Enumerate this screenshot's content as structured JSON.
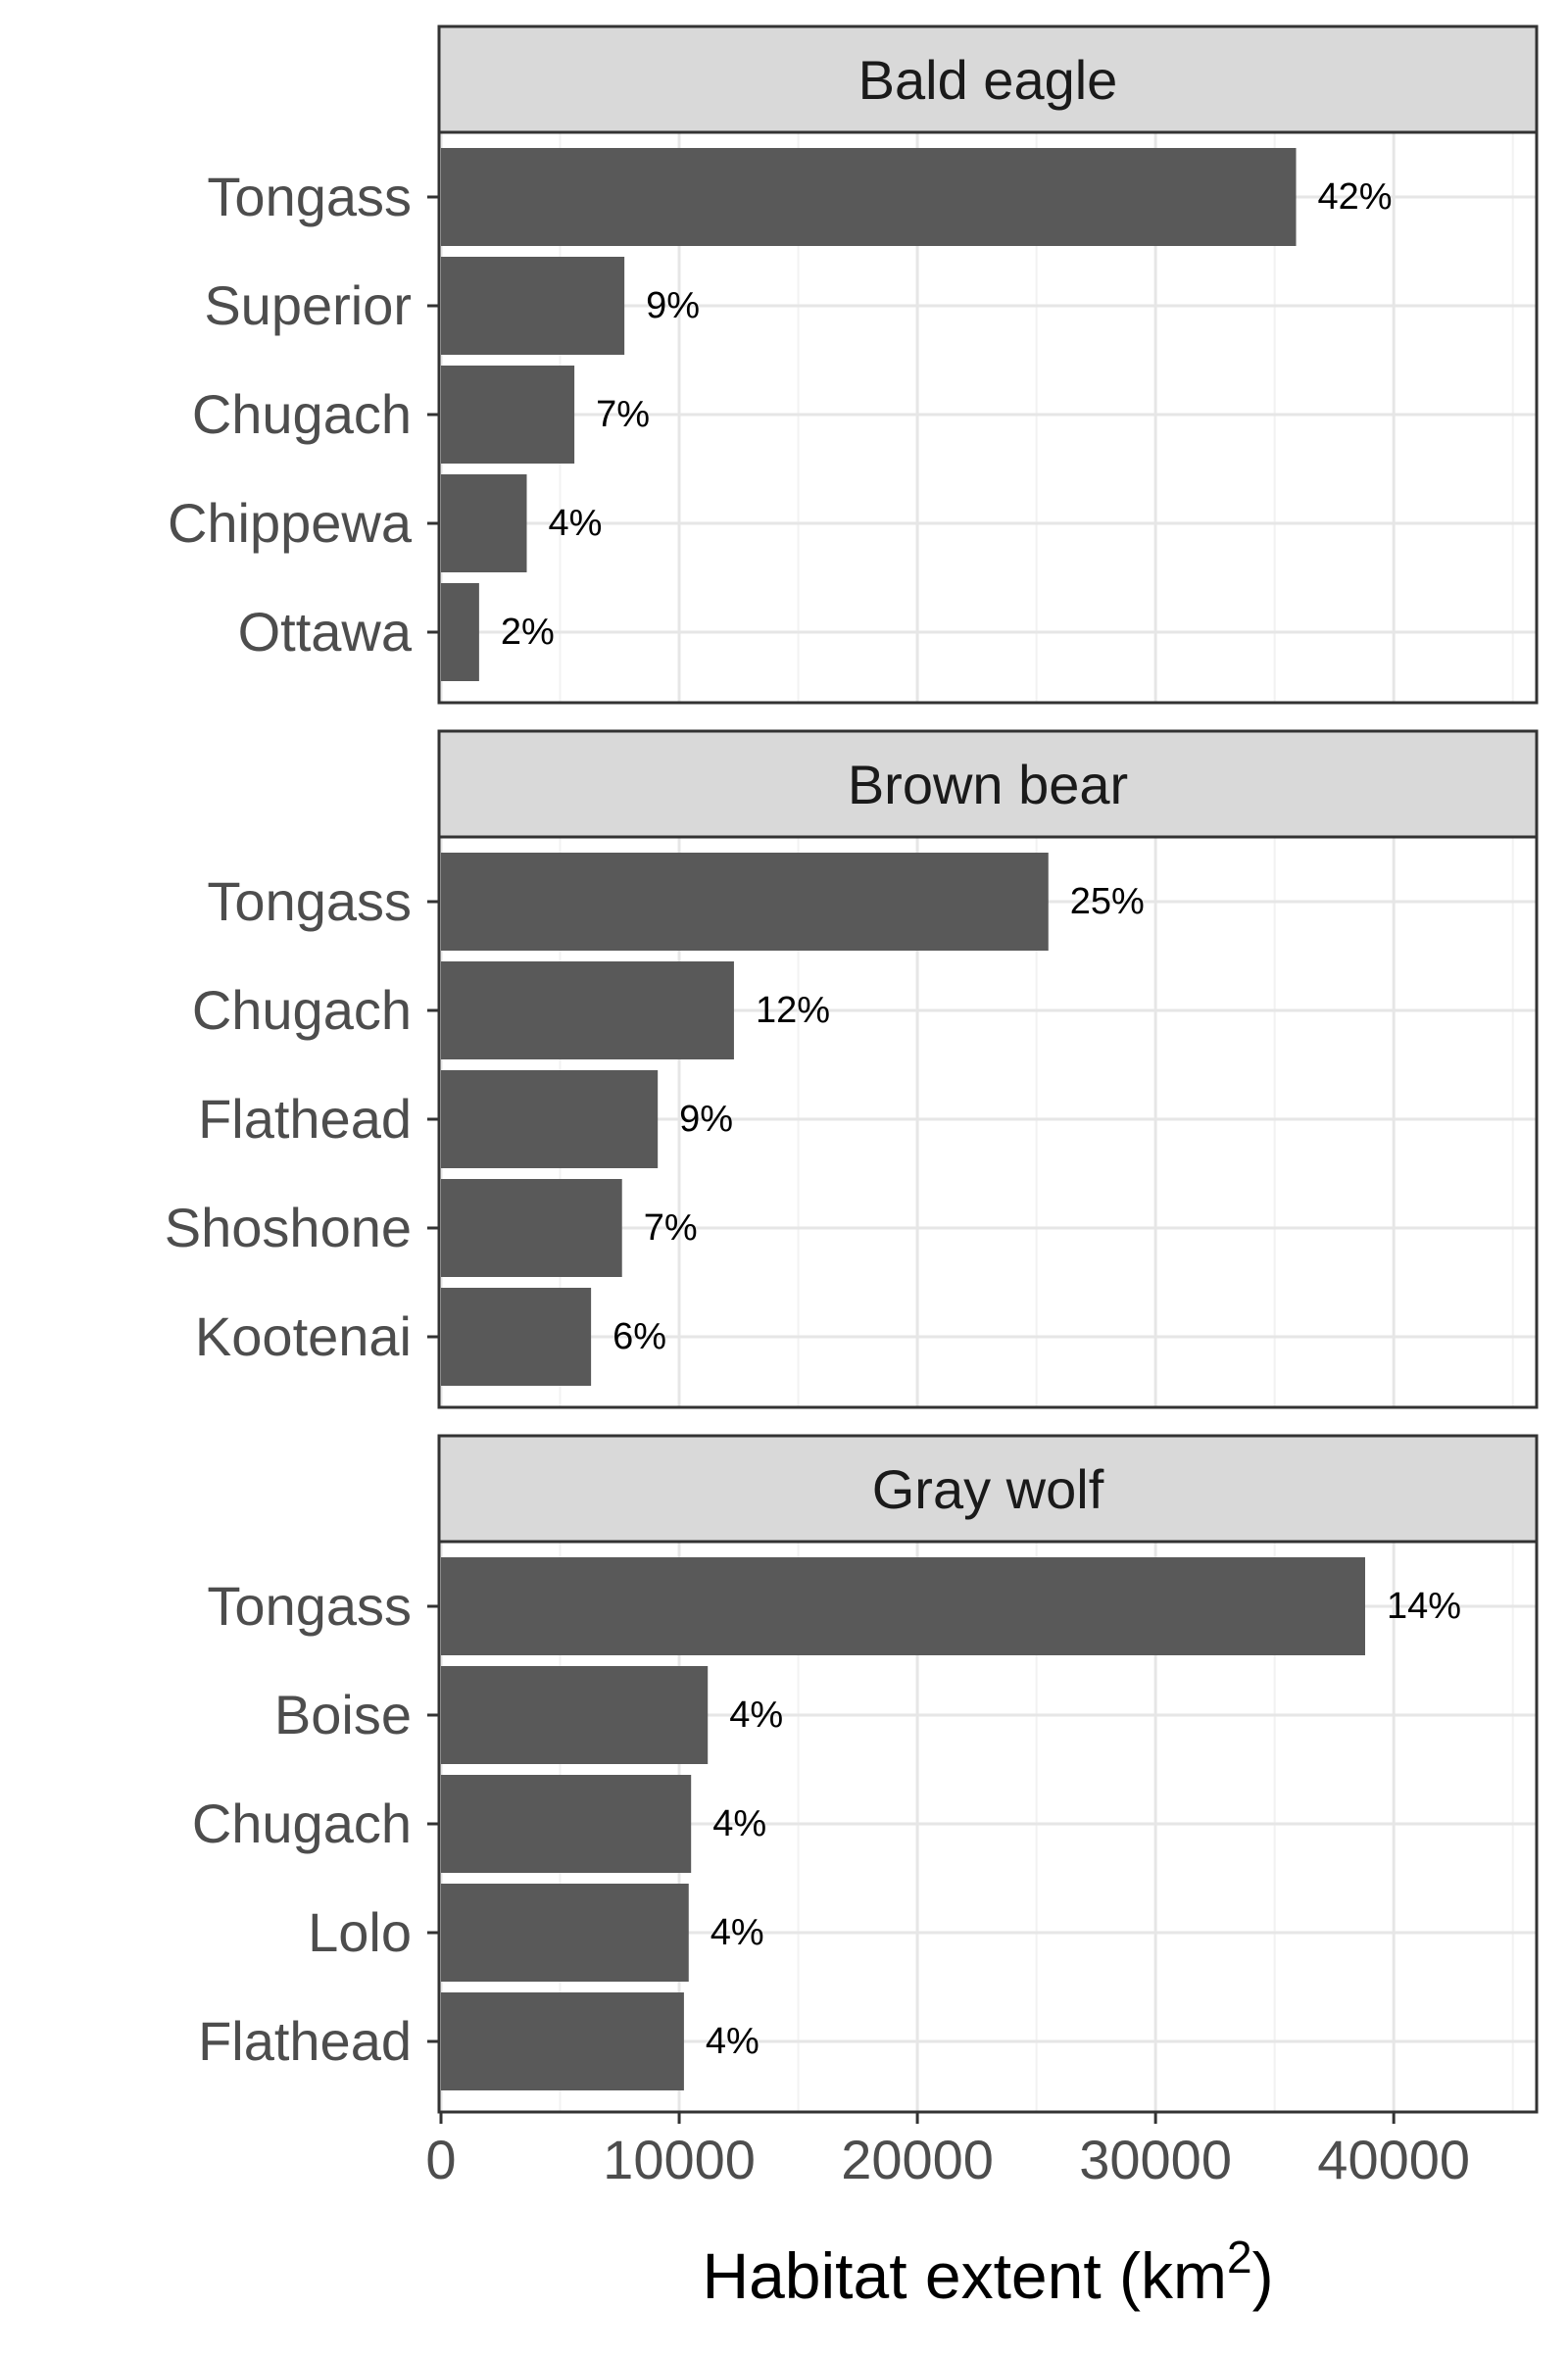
{
  "chart_data": {
    "type": "bar",
    "orientation": "horizontal",
    "layout": "faceted",
    "xlabel": "Habitat extent (km",
    "xlabel_superscript": "2",
    "xlabel_close": ")",
    "xlim": [
      0,
      46000
    ],
    "xticks": [
      0,
      10000,
      20000,
      30000,
      40000
    ],
    "xtick_labels": [
      "0",
      "10000",
      "20000",
      "30000",
      "40000"
    ],
    "grid": true,
    "bar_color": "#595959",
    "strip_color": "#d9d9d9",
    "facets": [
      {
        "title": "Bald eagle",
        "categories": [
          "Tongass",
          "Superior",
          "Chugach",
          "Chippewa",
          "Ottawa"
        ],
        "values": [
          35900,
          7700,
          5600,
          3600,
          1600
        ],
        "labels": [
          "42%",
          "9%",
          "7%",
          "4%",
          "2%"
        ]
      },
      {
        "title": "Brown bear",
        "categories": [
          "Tongass",
          "Chugach",
          "Flathead",
          "Shoshone",
          "Kootenai"
        ],
        "values": [
          25500,
          12300,
          9100,
          7600,
          6300
        ],
        "labels": [
          "25%",
          "12%",
          "9%",
          "7%",
          "6%"
        ]
      },
      {
        "title": "Gray wolf",
        "categories": [
          "Tongass",
          "Boise",
          "Chugach",
          "Lolo",
          "Flathead"
        ],
        "values": [
          38800,
          11200,
          10500,
          10400,
          10200
        ],
        "labels": [
          "14%",
          "4%",
          "4%",
          "4%",
          "4%"
        ]
      }
    ]
  }
}
